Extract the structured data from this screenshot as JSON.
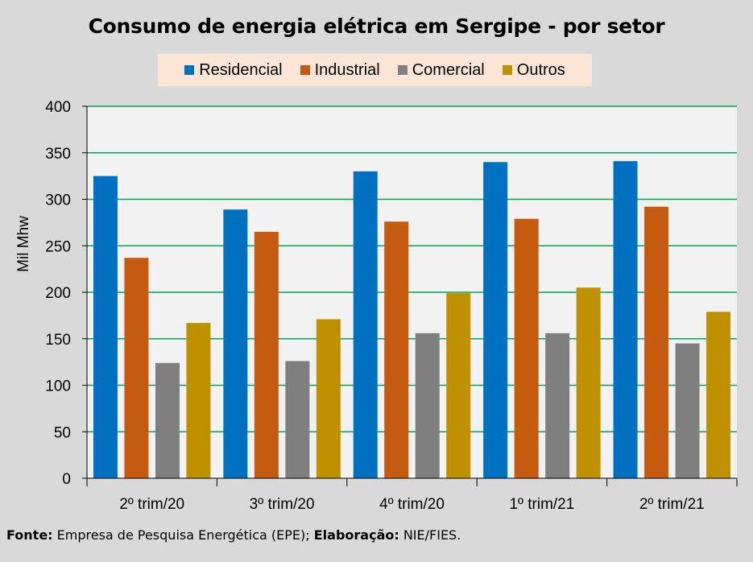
{
  "chart_data": {
    "type": "bar",
    "title": "Consumo de energia elétrica em Sergipe - por setor",
    "xlabel": "",
    "ylabel": "Mil Mhw",
    "ylim": [
      0,
      400
    ],
    "yticks": [
      0,
      50,
      100,
      150,
      200,
      250,
      300,
      350,
      400
    ],
    "categories": [
      "2º trim/20",
      "3º trim/20",
      "4º trim/20",
      "1º trim/21",
      "2º trim/21"
    ],
    "series": [
      {
        "name": "Residencial",
        "color": "#0070c0",
        "values": [
          325,
          289,
          330,
          340,
          341
        ]
      },
      {
        "name": "Industrial",
        "color": "#c55a11",
        "values": [
          237,
          265,
          276,
          279,
          292
        ]
      },
      {
        "name": "Comercial",
        "color": "#7f7f7f",
        "values": [
          124,
          126,
          156,
          156,
          145
        ]
      },
      {
        "name": "Outros",
        "color": "#bf9000",
        "values": [
          167,
          171,
          199,
          205,
          179
        ]
      }
    ],
    "grid": true,
    "legend_position": "top"
  },
  "footer": {
    "source_label": "Fonte:",
    "source_text": " Empresa de Pesquisa Energética (EPE); ",
    "credit_label": "Elaboração:",
    "credit_text": " NIE/FIES."
  }
}
